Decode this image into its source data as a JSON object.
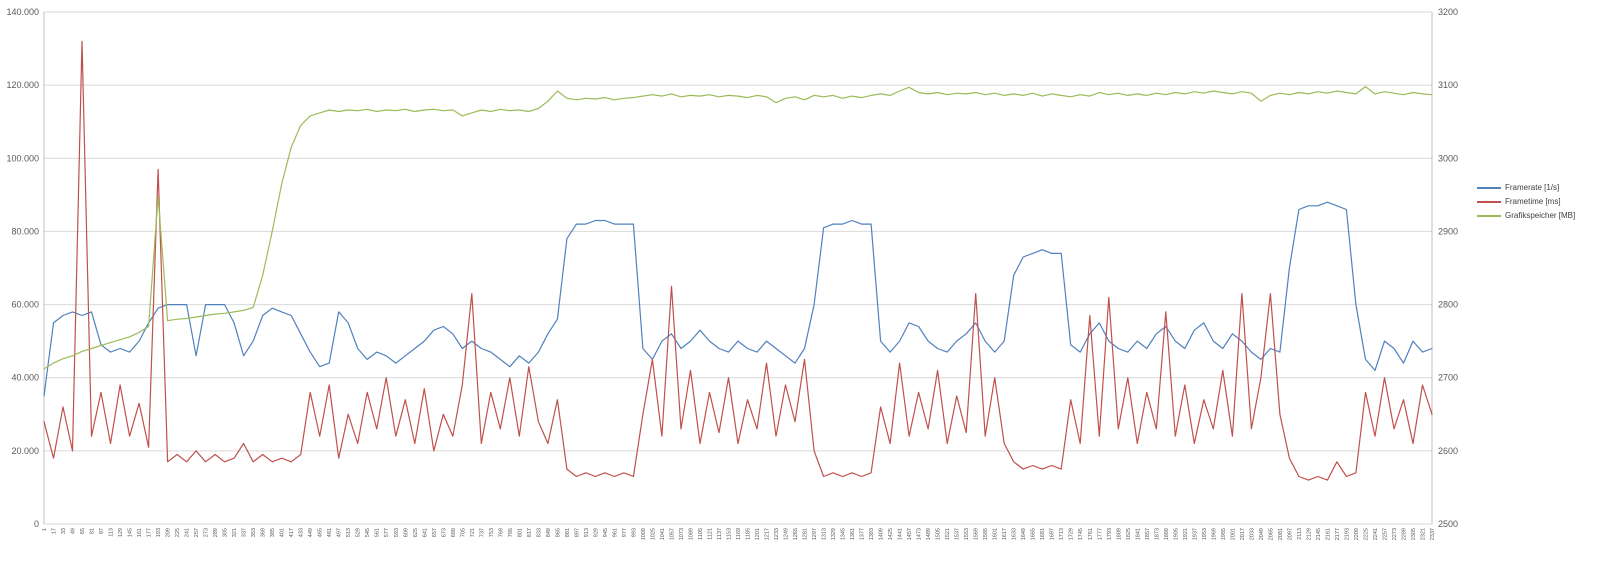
{
  "colors": {
    "background": "#FFFFFF",
    "gridline": "#D9D9D9",
    "axis_line": "#BFBFBF",
    "tick_text": "#595959",
    "framerate": "#4F81BD",
    "frametime": "#C0504D",
    "grafikspeicher": "#9BBB59"
  },
  "chart_data": {
    "type": "line",
    "title": "",
    "xlabel": "",
    "grid": "horizontal",
    "legend_position": "right",
    "x": [
      1,
      17,
      33,
      49,
      65,
      81,
      97,
      113,
      129,
      145,
      161,
      177,
      193,
      209,
      225,
      241,
      257,
      273,
      289,
      305,
      321,
      337,
      353,
      369,
      385,
      401,
      417,
      433,
      449,
      465,
      481,
      497,
      513,
      529,
      545,
      561,
      577,
      593,
      609,
      625,
      641,
      657,
      673,
      689,
      705,
      721,
      737,
      753,
      769,
      785,
      801,
      817,
      833,
      849,
      865,
      881,
      897,
      913,
      929,
      945,
      961,
      977,
      993,
      1009,
      1025,
      1041,
      1057,
      1073,
      1089,
      1105,
      1121,
      1137,
      1153,
      1169,
      1185,
      1201,
      1217,
      1233,
      1249,
      1265,
      1281,
      1297,
      1313,
      1329,
      1345,
      1361,
      1377,
      1393,
      1409,
      1425,
      1441,
      1457,
      1473,
      1489,
      1505,
      1521,
      1537,
      1553,
      1569,
      1585,
      1601,
      1617,
      1633,
      1649,
      1665,
      1681,
      1697,
      1713,
      1729,
      1745,
      1761,
      1777,
      1793,
      1809,
      1825,
      1841,
      1857,
      1873,
      1889,
      1905,
      1921,
      1937,
      1953,
      1969,
      1985,
      2001,
      2017,
      2033,
      2049,
      2065,
      2081,
      2097,
      2113,
      2129,
      2145,
      2161,
      2177,
      2193,
      2209,
      2225,
      2241,
      2257,
      2273,
      2289,
      2305,
      2321,
      2337
    ],
    "left_axis": {
      "min": 0,
      "max": 140,
      "tick_values": [
        0,
        20,
        40,
        60,
        80,
        100,
        120,
        140
      ],
      "tick_labels": [
        "0",
        "20.000",
        "40.000",
        "60.000",
        "80.000",
        "100.000",
        "120.000",
        "140.000"
      ]
    },
    "right_axis": {
      "min": 2500,
      "max": 3200,
      "tick_values": [
        2500,
        2600,
        2700,
        2800,
        2900,
        3000,
        3100,
        3200
      ],
      "tick_labels": [
        "2500",
        "2600",
        "2700",
        "2800",
        "2900",
        "3000",
        "3100",
        "3200"
      ]
    },
    "series": [
      {
        "name": "Framerate [1/s]",
        "color": "#4F81BD",
        "axis": "left",
        "values": [
          35,
          55,
          57,
          58,
          57,
          58,
          49,
          47,
          48,
          47,
          50,
          55,
          59,
          60,
          60,
          60,
          46,
          60,
          60,
          60,
          55,
          46,
          50,
          57,
          59,
          58,
          57,
          52,
          47,
          43,
          44,
          58,
          55,
          48,
          45,
          47,
          46,
          44,
          46,
          48,
          50,
          53,
          54,
          52,
          48,
          50,
          48,
          47,
          45,
          43,
          46,
          44,
          47,
          52,
          56,
          78,
          82,
          82,
          83,
          83,
          82,
          82,
          82,
          48,
          45,
          50,
          52,
          48,
          50,
          53,
          50,
          48,
          47,
          50,
          48,
          47,
          50,
          48,
          46,
          44,
          48,
          60,
          81,
          82,
          82,
          83,
          82,
          82,
          50,
          47,
          50,
          55,
          54,
          50,
          48,
          47,
          50,
          52,
          55,
          50,
          47,
          50,
          68,
          73,
          74,
          75,
          74,
          74,
          49,
          47,
          52,
          55,
          50,
          48,
          47,
          50,
          48,
          52,
          54,
          50,
          48,
          53,
          55,
          50,
          48,
          52,
          50,
          47,
          45,
          48,
          47,
          70,
          86,
          87,
          87,
          88,
          87,
          86,
          60,
          45,
          42,
          50,
          48,
          44,
          50,
          47,
          48
        ]
      },
      {
        "name": "Frametime [ms]",
        "color": "#C0504D",
        "axis": "left",
        "values": [
          28,
          18,
          32,
          20,
          132,
          24,
          36,
          22,
          38,
          24,
          33,
          21,
          97,
          17,
          19,
          17,
          20,
          17,
          19,
          17,
          18,
          22,
          17,
          19,
          17,
          18,
          17,
          19,
          36,
          24,
          38,
          18,
          30,
          22,
          36,
          26,
          40,
          24,
          34,
          22,
          37,
          20,
          30,
          24,
          38,
          63,
          22,
          36,
          26,
          40,
          24,
          43,
          28,
          22,
          34,
          15,
          13,
          14,
          13,
          14,
          13,
          14,
          13,
          30,
          45,
          24,
          65,
          26,
          42,
          22,
          36,
          25,
          40,
          22,
          34,
          26,
          44,
          24,
          38,
          28,
          45,
          20,
          13,
          14,
          13,
          14,
          13,
          14,
          32,
          22,
          44,
          24,
          36,
          26,
          42,
          22,
          35,
          25,
          63,
          24,
          40,
          22,
          17,
          15,
          16,
          15,
          16,
          15,
          34,
          22,
          57,
          24,
          62,
          26,
          40,
          22,
          36,
          26,
          58,
          24,
          38,
          22,
          34,
          26,
          42,
          24,
          63,
          26,
          40,
          63,
          30,
          18,
          13,
          12,
          13,
          12,
          17,
          13,
          14,
          36,
          24,
          40,
          26,
          34,
          22,
          38,
          30
        ]
      },
      {
        "name": "Grafikspeicher [MB]",
        "color": "#9BBB59",
        "axis": "right",
        "values": [
          2712,
          2720,
          2726,
          2730,
          2736,
          2740,
          2744,
          2748,
          2752,
          2756,
          2762,
          2770,
          2948,
          2778,
          2780,
          2781,
          2783,
          2785,
          2787,
          2788,
          2790,
          2792,
          2796,
          2840,
          2900,
          2965,
          3015,
          3045,
          3058,
          3062,
          3066,
          3064,
          3066,
          3065,
          3067,
          3064,
          3066,
          3065,
          3067,
          3064,
          3066,
          3067,
          3065,
          3066,
          3058,
          3062,
          3066,
          3064,
          3067,
          3065,
          3066,
          3064,
          3068,
          3078,
          3092,
          3082,
          3080,
          3082,
          3081,
          3083,
          3080,
          3082,
          3083,
          3085,
          3087,
          3085,
          3088,
          3084,
          3086,
          3085,
          3087,
          3084,
          3086,
          3085,
          3083,
          3086,
          3084,
          3076,
          3082,
          3084,
          3080,
          3086,
          3084,
          3086,
          3082,
          3085,
          3083,
          3086,
          3088,
          3086,
          3092,
          3097,
          3090,
          3088,
          3090,
          3087,
          3089,
          3088,
          3090,
          3087,
          3089,
          3086,
          3088,
          3086,
          3089,
          3085,
          3088,
          3086,
          3084,
          3087,
          3085,
          3090,
          3087,
          3089,
          3086,
          3088,
          3086,
          3089,
          3087,
          3090,
          3088,
          3091,
          3089,
          3092,
          3090,
          3088,
          3091,
          3089,
          3078,
          3086,
          3089,
          3087,
          3090,
          3088,
          3091,
          3089,
          3092,
          3090,
          3088,
          3098,
          3088,
          3091,
          3089,
          3087,
          3090,
          3088,
          3087
        ]
      }
    ]
  }
}
